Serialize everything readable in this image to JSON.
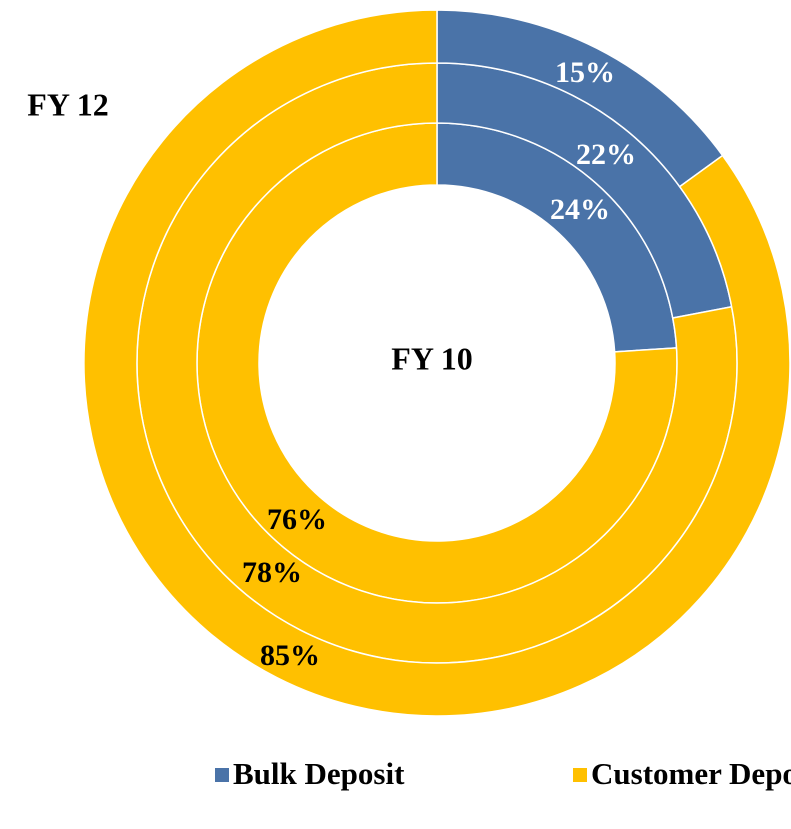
{
  "chart_data": {
    "type": "donut",
    "categories": [
      "Bulk Deposit",
      "Customer Deposit"
    ],
    "colors": [
      "#4a73a8",
      "#ffc000"
    ],
    "series": [
      {
        "name": "FY 10",
        "values": [
          24,
          76
        ],
        "value_labels": [
          "24%",
          "76%"
        ]
      },
      {
        "name": null,
        "values": [
          22,
          78
        ],
        "value_labels": [
          "22%",
          "78%"
        ]
      },
      {
        "name": "FY 12",
        "values": [
          15,
          85
        ],
        "value_labels": [
          "15%",
          "85%"
        ]
      }
    ],
    "legend": "bottom"
  }
}
